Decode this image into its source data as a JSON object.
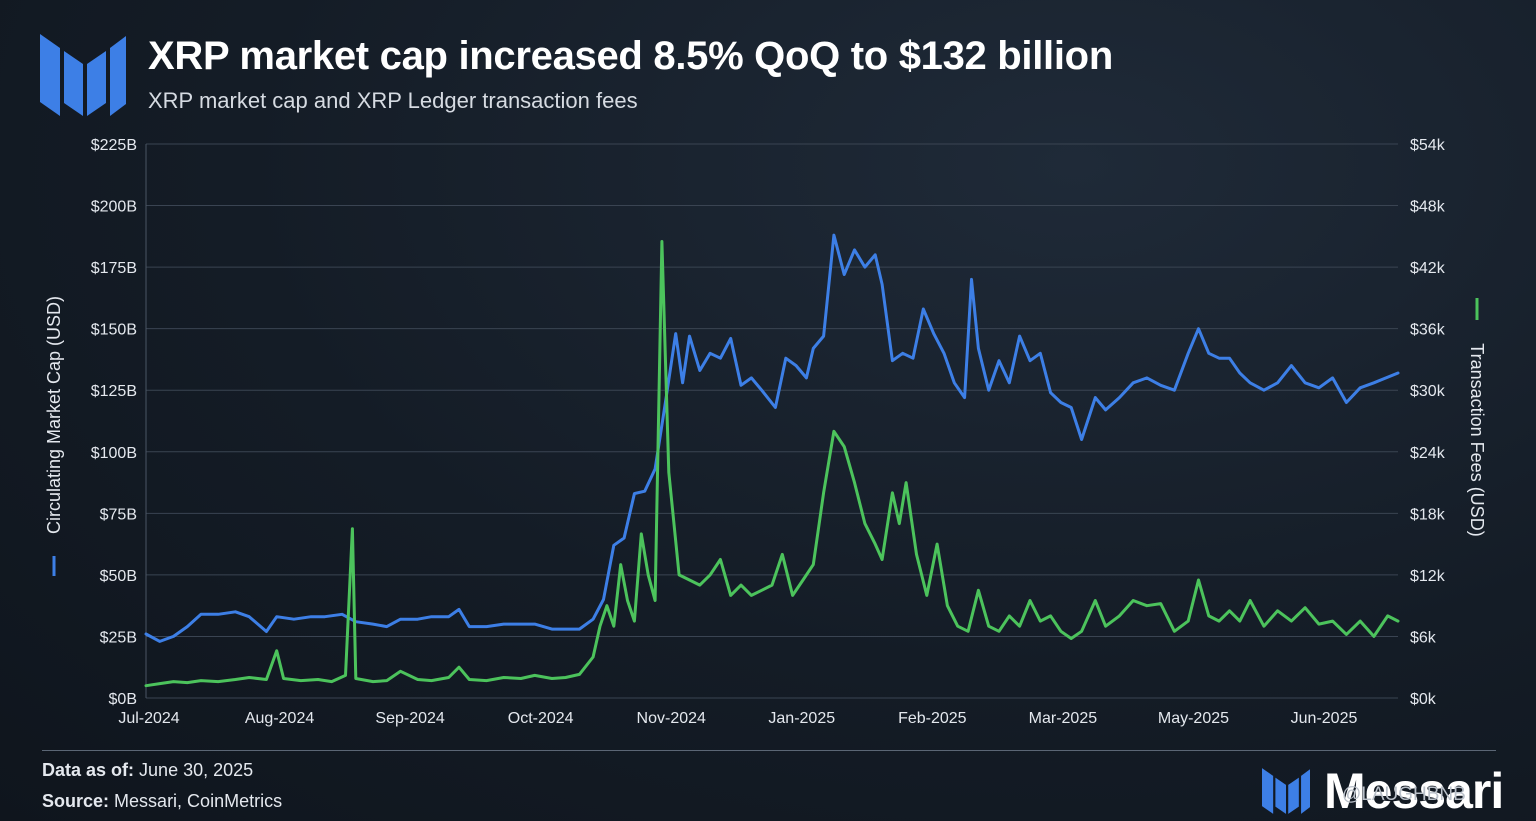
{
  "header": {
    "title": "XRP market cap increased 8.5% QoQ to $132 billion",
    "subtitle": "XRP market cap and XRP Ledger transaction fees"
  },
  "colors": {
    "market_cap": "#3d7fe6",
    "fees": "#4cc35c",
    "brand": "#3d7fe6",
    "grid": "#3a4452"
  },
  "chart_data": {
    "type": "line",
    "y_left": {
      "label": "Circulating Market Cap (USD)",
      "ticks": [
        "$0B",
        "$25B",
        "$50B",
        "$75B",
        "$100B",
        "$125B",
        "$150B",
        "$175B",
        "$200B",
        "$225B"
      ],
      "range": [
        0,
        225
      ]
    },
    "y_right": {
      "label": "Transaction Fees (USD)",
      "ticks": [
        "$0k",
        "$6k",
        "$12k",
        "$18k",
        "$24k",
        "$30k",
        "$36k",
        "$42k",
        "$48k",
        "$54k"
      ],
      "range": [
        0,
        54
      ]
    },
    "x_ticks": [
      "Jul-2024",
      "Aug-2024",
      "Sep-2024",
      "Oct-2024",
      "Nov-2024",
      "Jan-2025",
      "Feb-2025",
      "Mar-2025",
      "May-2025",
      "Jun-2025"
    ],
    "grid": true,
    "series": [
      {
        "name": "Circulating Market Cap (USD)",
        "axis": "left",
        "unit": "USD billions",
        "points": [
          [
            "2024-07-01",
            26
          ],
          [
            "2024-07-05",
            23
          ],
          [
            "2024-07-09",
            25
          ],
          [
            "2024-07-13",
            29
          ],
          [
            "2024-07-17",
            34
          ],
          [
            "2024-07-22",
            34
          ],
          [
            "2024-07-27",
            35
          ],
          [
            "2024-07-31",
            33
          ],
          [
            "2024-08-05",
            27
          ],
          [
            "2024-08-08",
            33
          ],
          [
            "2024-08-13",
            32
          ],
          [
            "2024-08-18",
            33
          ],
          [
            "2024-08-22",
            33
          ],
          [
            "2024-08-27",
            34
          ],
          [
            "2024-08-31",
            31
          ],
          [
            "2024-09-05",
            30
          ],
          [
            "2024-09-09",
            29
          ],
          [
            "2024-09-13",
            32
          ],
          [
            "2024-09-18",
            32
          ],
          [
            "2024-09-22",
            33
          ],
          [
            "2024-09-27",
            33
          ],
          [
            "2024-09-30",
            36
          ],
          [
            "2024-10-03",
            29
          ],
          [
            "2024-10-08",
            29
          ],
          [
            "2024-10-13",
            30
          ],
          [
            "2024-10-18",
            30
          ],
          [
            "2024-10-22",
            30
          ],
          [
            "2024-10-27",
            28
          ],
          [
            "2024-10-31",
            28
          ],
          [
            "2024-11-04",
            28
          ],
          [
            "2024-11-08",
            32
          ],
          [
            "2024-11-11",
            40
          ],
          [
            "2024-11-14",
            62
          ],
          [
            "2024-11-17",
            65
          ],
          [
            "2024-11-20",
            83
          ],
          [
            "2024-11-23",
            84
          ],
          [
            "2024-11-26",
            93
          ],
          [
            "2024-11-29",
            120
          ],
          [
            "2024-12-02",
            148
          ],
          [
            "2024-12-04",
            128
          ],
          [
            "2024-12-06",
            147
          ],
          [
            "2024-12-09",
            133
          ],
          [
            "2024-12-12",
            140
          ],
          [
            "2024-12-15",
            138
          ],
          [
            "2024-12-18",
            146
          ],
          [
            "2024-12-21",
            127
          ],
          [
            "2024-12-24",
            130
          ],
          [
            "2024-12-27",
            125
          ],
          [
            "2024-12-31",
            118
          ],
          [
            "2025-01-03",
            138
          ],
          [
            "2025-01-06",
            135
          ],
          [
            "2025-01-09",
            130
          ],
          [
            "2025-01-11",
            142
          ],
          [
            "2025-01-14",
            147
          ],
          [
            "2025-01-17",
            188
          ],
          [
            "2025-01-20",
            172
          ],
          [
            "2025-01-23",
            182
          ],
          [
            "2025-01-26",
            175
          ],
          [
            "2025-01-29",
            180
          ],
          [
            "2025-01-31",
            168
          ],
          [
            "2025-02-03",
            137
          ],
          [
            "2025-02-06",
            140
          ],
          [
            "2025-02-09",
            138
          ],
          [
            "2025-02-12",
            158
          ],
          [
            "2025-02-15",
            148
          ],
          [
            "2025-02-18",
            140
          ],
          [
            "2025-02-21",
            128
          ],
          [
            "2025-02-24",
            122
          ],
          [
            "2025-02-26",
            170
          ],
          [
            "2025-02-28",
            142
          ],
          [
            "2025-03-03",
            125
          ],
          [
            "2025-03-06",
            137
          ],
          [
            "2025-03-09",
            128
          ],
          [
            "2025-03-12",
            147
          ],
          [
            "2025-03-15",
            137
          ],
          [
            "2025-03-18",
            140
          ],
          [
            "2025-03-21",
            124
          ],
          [
            "2025-03-24",
            120
          ],
          [
            "2025-03-27",
            118
          ],
          [
            "2025-03-30",
            105
          ],
          [
            "2025-04-03",
            122
          ],
          [
            "2025-04-06",
            117
          ],
          [
            "2025-04-10",
            122
          ],
          [
            "2025-04-14",
            128
          ],
          [
            "2025-04-18",
            130
          ],
          [
            "2025-04-22",
            127
          ],
          [
            "2025-04-26",
            125
          ],
          [
            "2025-04-30",
            140
          ],
          [
            "2025-05-03",
            150
          ],
          [
            "2025-05-06",
            140
          ],
          [
            "2025-05-09",
            138
          ],
          [
            "2025-05-12",
            138
          ],
          [
            "2025-05-15",
            132
          ],
          [
            "2025-05-18",
            128
          ],
          [
            "2025-05-22",
            125
          ],
          [
            "2025-05-26",
            128
          ],
          [
            "2025-05-30",
            135
          ],
          [
            "2025-06-03",
            128
          ],
          [
            "2025-06-07",
            126
          ],
          [
            "2025-06-11",
            130
          ],
          [
            "2025-06-15",
            120
          ],
          [
            "2025-06-19",
            126
          ],
          [
            "2025-06-23",
            128
          ],
          [
            "2025-06-30",
            132
          ]
        ]
      },
      {
        "name": "Transaction Fees (USD)",
        "axis": "right",
        "unit": "USD thousands",
        "points": [
          [
            "2024-07-01",
            1.2
          ],
          [
            "2024-07-05",
            1.4
          ],
          [
            "2024-07-09",
            1.6
          ],
          [
            "2024-07-13",
            1.5
          ],
          [
            "2024-07-17",
            1.7
          ],
          [
            "2024-07-22",
            1.6
          ],
          [
            "2024-07-27",
            1.8
          ],
          [
            "2024-07-31",
            2.0
          ],
          [
            "2024-08-05",
            1.8
          ],
          [
            "2024-08-08",
            4.6
          ],
          [
            "2024-08-10",
            1.9
          ],
          [
            "2024-08-15",
            1.7
          ],
          [
            "2024-08-20",
            1.8
          ],
          [
            "2024-08-24",
            1.6
          ],
          [
            "2024-08-28",
            2.2
          ],
          [
            "2024-08-30",
            16.5
          ],
          [
            "2024-08-31",
            1.9
          ],
          [
            "2024-09-05",
            1.6
          ],
          [
            "2024-09-09",
            1.7
          ],
          [
            "2024-09-13",
            2.6
          ],
          [
            "2024-09-18",
            1.8
          ],
          [
            "2024-09-22",
            1.7
          ],
          [
            "2024-09-27",
            2.0
          ],
          [
            "2024-09-30",
            3.0
          ],
          [
            "2024-10-03",
            1.8
          ],
          [
            "2024-10-08",
            1.7
          ],
          [
            "2024-10-13",
            2.0
          ],
          [
            "2024-10-18",
            1.9
          ],
          [
            "2024-10-22",
            2.2
          ],
          [
            "2024-10-27",
            1.9
          ],
          [
            "2024-10-31",
            2.0
          ],
          [
            "2024-11-04",
            2.3
          ],
          [
            "2024-11-08",
            4.0
          ],
          [
            "2024-11-10",
            7.0
          ],
          [
            "2024-11-12",
            9.0
          ],
          [
            "2024-11-14",
            7.0
          ],
          [
            "2024-11-16",
            13.0
          ],
          [
            "2024-11-18",
            9.5
          ],
          [
            "2024-11-20",
            7.5
          ],
          [
            "2024-11-22",
            16.0
          ],
          [
            "2024-11-24",
            12.0
          ],
          [
            "2024-11-26",
            9.5
          ],
          [
            "2024-11-28",
            44.5
          ],
          [
            "2024-11-30",
            22.0
          ],
          [
            "2024-12-03",
            12.0
          ],
          [
            "2024-12-06",
            11.5
          ],
          [
            "2024-12-09",
            11.0
          ],
          [
            "2024-12-12",
            12.0
          ],
          [
            "2024-12-15",
            13.5
          ],
          [
            "2024-12-18",
            10.0
          ],
          [
            "2024-12-21",
            11.0
          ],
          [
            "2024-12-24",
            10.0
          ],
          [
            "2024-12-27",
            10.5
          ],
          [
            "2024-12-30",
            11.0
          ],
          [
            "2025-01-02",
            14.0
          ],
          [
            "2025-01-05",
            10.0
          ],
          [
            "2025-01-08",
            11.5
          ],
          [
            "2025-01-11",
            13.0
          ],
          [
            "2025-01-14",
            20.0
          ],
          [
            "2025-01-17",
            26.0
          ],
          [
            "2025-01-20",
            24.5
          ],
          [
            "2025-01-23",
            21.0
          ],
          [
            "2025-01-26",
            17.0
          ],
          [
            "2025-01-29",
            15.0
          ],
          [
            "2025-01-31",
            13.5
          ],
          [
            "2025-02-03",
            20.0
          ],
          [
            "2025-02-05",
            17.0
          ],
          [
            "2025-02-07",
            21.0
          ],
          [
            "2025-02-10",
            14.0
          ],
          [
            "2025-02-13",
            10.0
          ],
          [
            "2025-02-16",
            15.0
          ],
          [
            "2025-02-19",
            9.0
          ],
          [
            "2025-02-22",
            7.0
          ],
          [
            "2025-02-25",
            6.5
          ],
          [
            "2025-02-28",
            10.5
          ],
          [
            "2025-03-03",
            7.0
          ],
          [
            "2025-03-06",
            6.5
          ],
          [
            "2025-03-09",
            8.0
          ],
          [
            "2025-03-12",
            7.0
          ],
          [
            "2025-03-15",
            9.5
          ],
          [
            "2025-03-18",
            7.5
          ],
          [
            "2025-03-21",
            8.0
          ],
          [
            "2025-03-24",
            6.5
          ],
          [
            "2025-03-27",
            5.8
          ],
          [
            "2025-03-30",
            6.5
          ],
          [
            "2025-04-03",
            9.5
          ],
          [
            "2025-04-06",
            7.0
          ],
          [
            "2025-04-10",
            8.0
          ],
          [
            "2025-04-14",
            9.5
          ],
          [
            "2025-04-18",
            9.0
          ],
          [
            "2025-04-22",
            9.2
          ],
          [
            "2025-04-26",
            6.5
          ],
          [
            "2025-04-30",
            7.5
          ],
          [
            "2025-05-03",
            11.5
          ],
          [
            "2025-05-06",
            8.0
          ],
          [
            "2025-05-09",
            7.5
          ],
          [
            "2025-05-12",
            8.5
          ],
          [
            "2025-05-15",
            7.5
          ],
          [
            "2025-05-18",
            9.5
          ],
          [
            "2025-05-22",
            7.0
          ],
          [
            "2025-05-26",
            8.5
          ],
          [
            "2025-05-30",
            7.5
          ],
          [
            "2025-06-03",
            8.8
          ],
          [
            "2025-06-07",
            7.2
          ],
          [
            "2025-06-11",
            7.5
          ],
          [
            "2025-06-15",
            6.2
          ],
          [
            "2025-06-19",
            7.5
          ],
          [
            "2025-06-23",
            6.0
          ],
          [
            "2025-06-27",
            8.0
          ],
          [
            "2025-06-30",
            7.5
          ]
        ]
      }
    ]
  },
  "footer": {
    "data_as_of_label": "Data as of:",
    "data_as_of_value": "June 30, 2025",
    "source_label": "Source:",
    "source_value": "Messari, CoinMetrics"
  },
  "brand": {
    "wordmark": "Messari",
    "watermark": "@LAUGHBNB"
  }
}
